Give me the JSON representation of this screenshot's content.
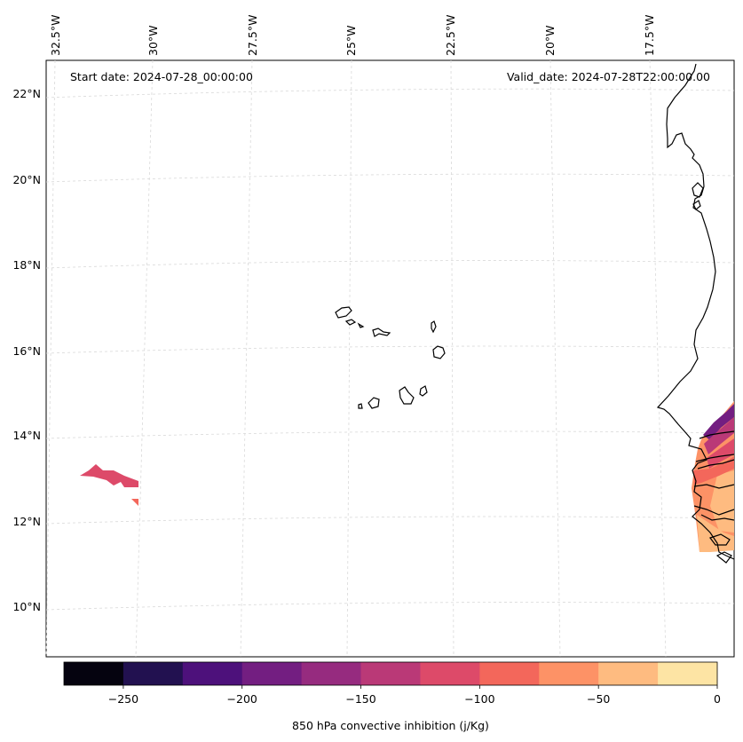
{
  "map": {
    "start_label": "Start date: 2024-07-28_00:00:00",
    "valid_label": "Valid_date: 2024-07-28T22:00:00.00",
    "lon_ticks": [
      "32.5°W",
      "30°W",
      "27.5°W",
      "25°W",
      "22.5°W",
      "20°W",
      "17.5°W"
    ],
    "lat_ticks": [
      "22°N",
      "20°N",
      "18°N",
      "16°N",
      "14°N",
      "12°N",
      "10°N"
    ],
    "colorbar_label": "850 hPa convective inhibition (j/Kg)",
    "colorbar_ticks": [
      "−250",
      "−200",
      "−150",
      "−100",
      "−50",
      "0"
    ],
    "colorbar_colors": [
      "#05030f",
      "#221150",
      "#4d117b",
      "#731e81",
      "#962b7f",
      "#ba3977",
      "#dd4a69",
      "#f3675b",
      "#fd9266",
      "#febb80",
      "#fde4a4"
    ],
    "grid": true,
    "coastline_color": "#000000"
  }
}
